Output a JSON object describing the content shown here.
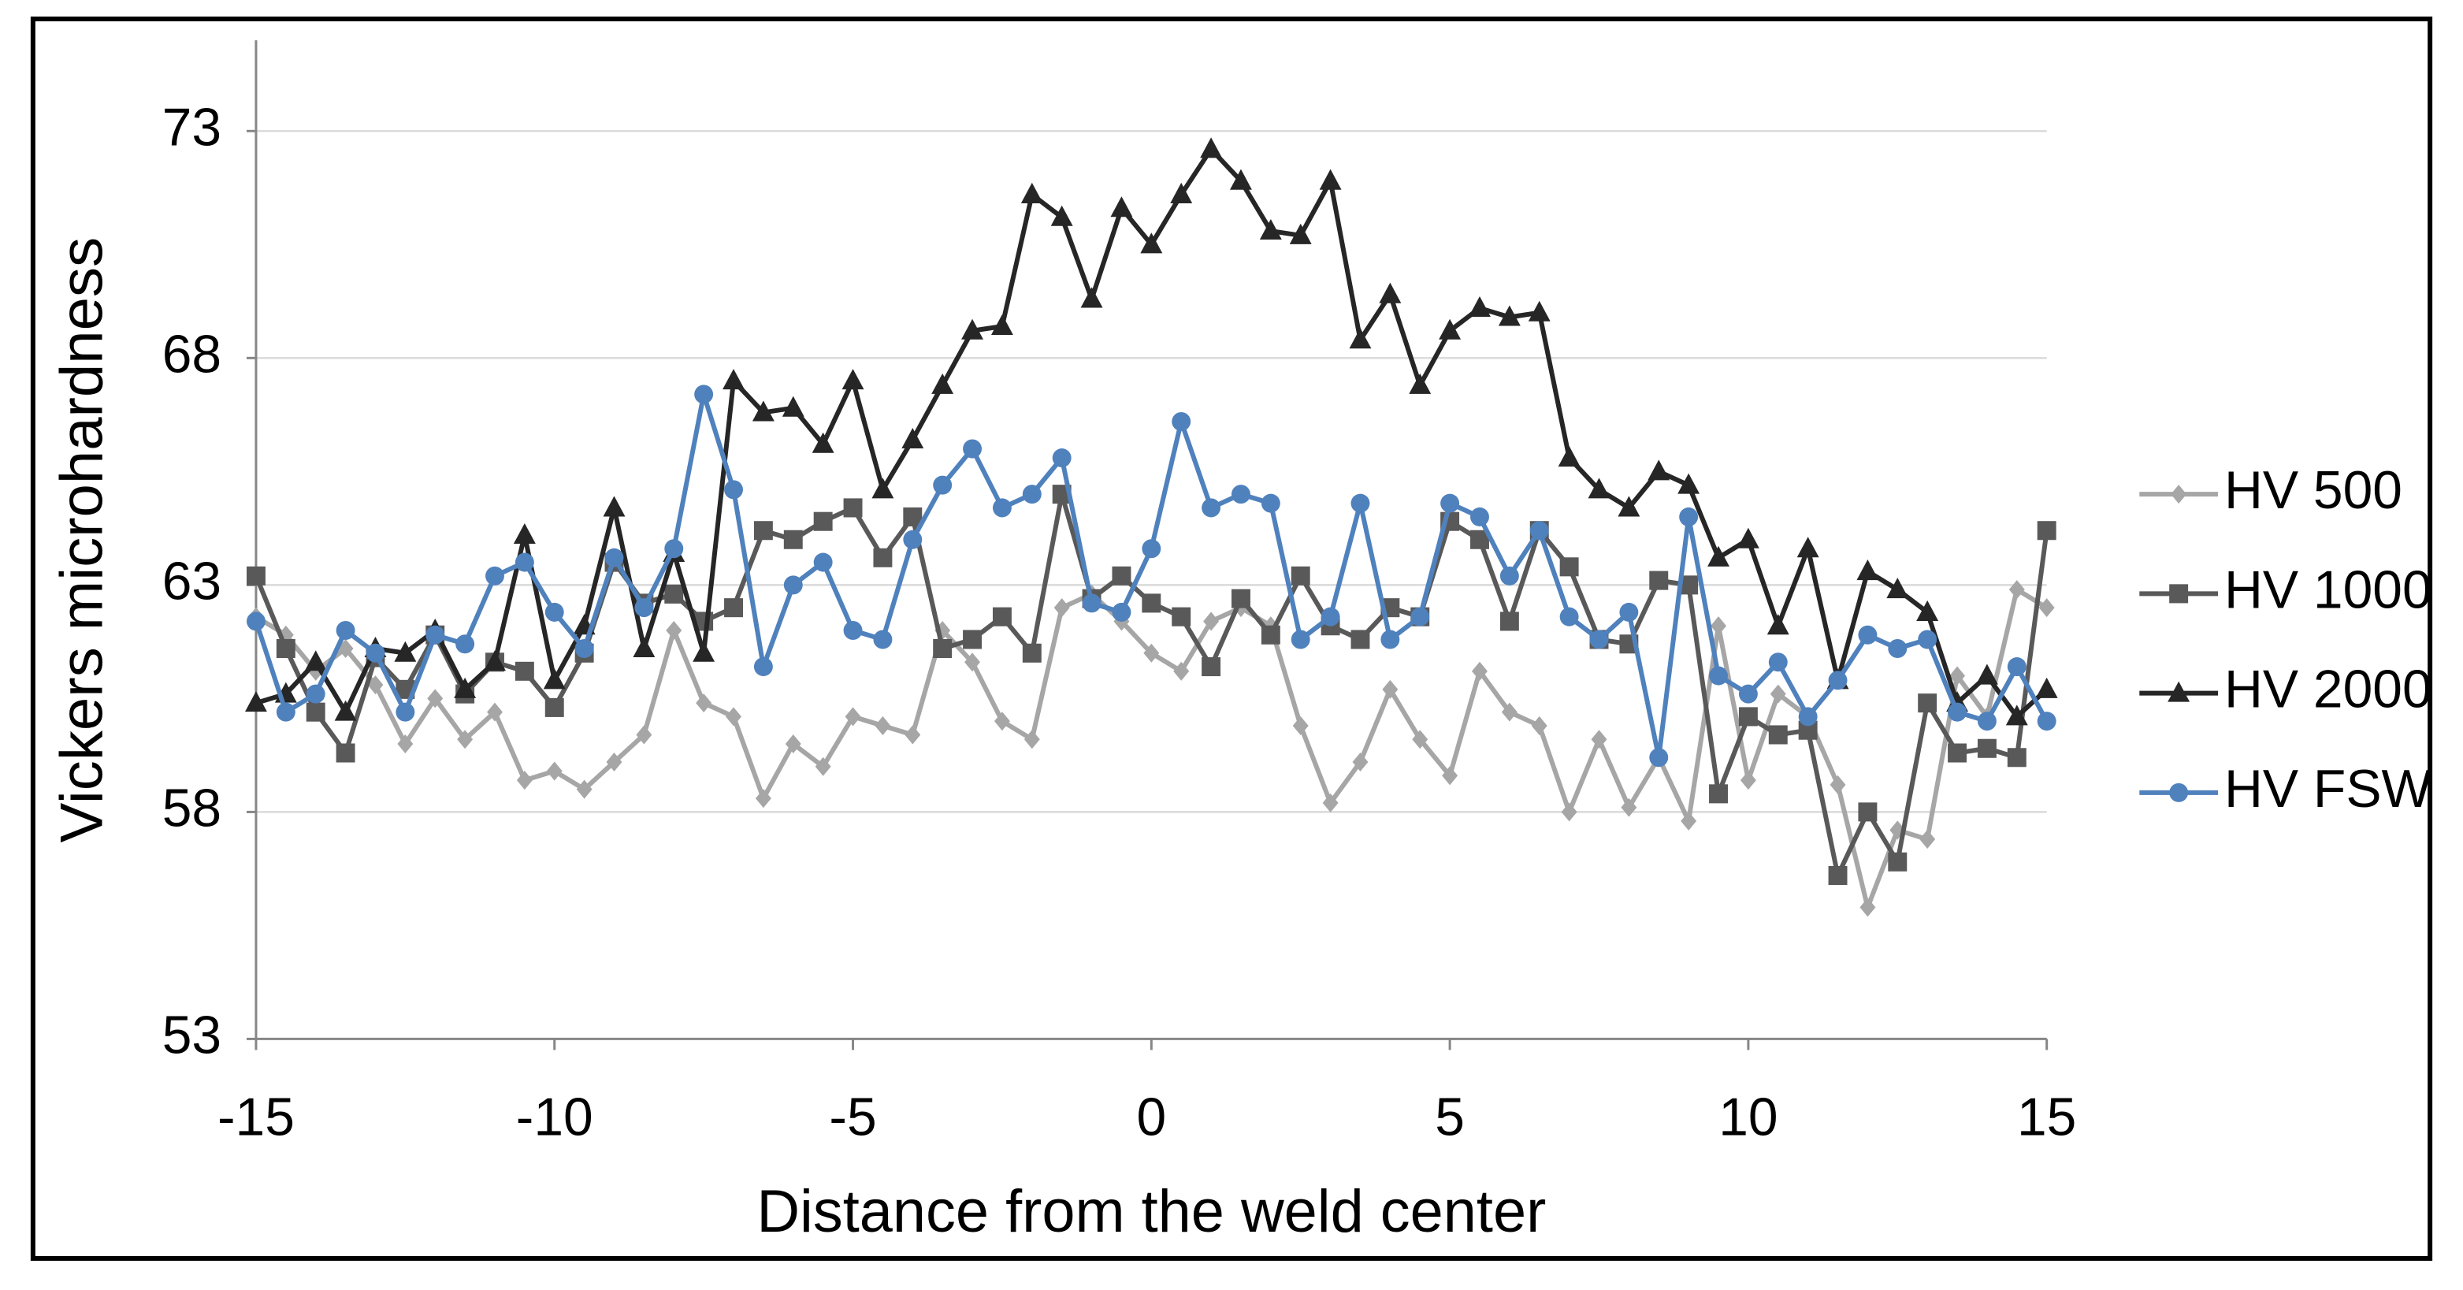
{
  "chart_data": {
    "type": "line",
    "xlabel": "Distance from the weld center",
    "ylabel": "Vickers microhardness",
    "x": [
      -15,
      -14.5,
      -14,
      -13.5,
      -13,
      -12.5,
      -12,
      -11.5,
      -11,
      -10.5,
      -10,
      -9.5,
      -9,
      -8.5,
      -8,
      -7.5,
      -7,
      -6.5,
      -6,
      -5.5,
      -5,
      -4.5,
      -4,
      -3.5,
      -3,
      -2.5,
      -2,
      -1.5,
      -1,
      -0.5,
      0,
      0.5,
      1,
      1.5,
      2,
      2.5,
      3,
      3.5,
      4,
      4.5,
      5,
      5.5,
      6,
      6.5,
      7,
      7.5,
      8,
      8.5,
      9,
      9.5,
      10,
      10.5,
      11,
      11.5,
      12,
      12.5,
      13,
      13.5,
      14,
      14.5,
      15
    ],
    "xlim": [
      -15,
      15
    ],
    "xticks": [
      -15,
      -10,
      -5,
      0,
      5,
      10,
      15
    ],
    "ylim": [
      53,
      75
    ],
    "yticks": [
      53,
      58,
      63,
      68,
      73
    ],
    "grid": true,
    "legend": "right",
    "series": [
      {
        "name": "HV 500",
        "color": "#a6a6a6",
        "marker": "diamond",
        "values": [
          62.3,
          61.9,
          61.1,
          61.6,
          60.8,
          59.5,
          60.5,
          59.6,
          60.2,
          58.7,
          58.9,
          58.5,
          59.1,
          59.7,
          62.0,
          60.4,
          60.1,
          58.3,
          59.5,
          59.0,
          60.1,
          59.9,
          59.7,
          62.0,
          61.3,
          60.0,
          59.6,
          62.5,
          62.8,
          62.2,
          61.5,
          61.1,
          62.2,
          62.5,
          62.1,
          59.9,
          58.2,
          59.1,
          60.7,
          59.6,
          58.8,
          61.1,
          60.2,
          59.9,
          58.0,
          59.6,
          58.1,
          59.2,
          57.8,
          62.1,
          58.7,
          60.6,
          60.1,
          58.6,
          55.9,
          57.6,
          57.4,
          61.0,
          60.1,
          62.9,
          62.5
        ]
      },
      {
        "name": "HV 1000",
        "color": "#595959",
        "marker": "square",
        "values": [
          63.2,
          61.6,
          60.2,
          59.3,
          61.4,
          60.7,
          61.9,
          60.6,
          61.3,
          61.1,
          60.3,
          61.5,
          63.5,
          62.6,
          62.8,
          62.2,
          62.5,
          64.2,
          64.0,
          64.4,
          64.7,
          63.6,
          64.5,
          61.6,
          61.8,
          62.3,
          61.5,
          65.0,
          62.7,
          63.2,
          62.6,
          62.3,
          61.2,
          62.7,
          61.9,
          63.2,
          62.1,
          61.8,
          62.5,
          62.3,
          64.4,
          64.0,
          62.2,
          64.2,
          63.4,
          61.8,
          61.7,
          63.1,
          63.0,
          58.4,
          60.1,
          59.7,
          59.8,
          56.6,
          58.0,
          56.9,
          60.4,
          59.3,
          59.4,
          59.2,
          64.2
        ]
      },
      {
        "name": "HV 2000",
        "color": "#262626",
        "marker": "triangle",
        "values": [
          60.4,
          60.6,
          61.3,
          60.2,
          61.6,
          61.5,
          62.0,
          60.7,
          61.3,
          64.1,
          60.9,
          62.1,
          64.7,
          61.6,
          63.7,
          61.5,
          67.5,
          66.8,
          66.9,
          66.1,
          67.5,
          65.1,
          66.2,
          67.4,
          68.6,
          68.7,
          71.6,
          71.1,
          69.3,
          71.3,
          70.5,
          71.6,
          72.6,
          71.9,
          70.8,
          70.7,
          71.9,
          68.4,
          69.4,
          67.4,
          68.6,
          69.1,
          68.9,
          69.0,
          65.8,
          65.1,
          64.7,
          65.5,
          65.2,
          63.6,
          64.0,
          62.1,
          63.8,
          60.9,
          63.3,
          62.9,
          62.4,
          60.4,
          61.0,
          60.1,
          60.7
        ]
      },
      {
        "name": "HV FSW",
        "color": "#4f81bd",
        "marker": "circle",
        "values": [
          62.2,
          60.2,
          60.6,
          62.0,
          61.5,
          60.2,
          61.9,
          61.7,
          63.2,
          63.5,
          62.4,
          61.6,
          63.6,
          62.5,
          63.8,
          67.2,
          65.1,
          61.2,
          63.0,
          63.5,
          62.0,
          61.8,
          64.0,
          65.2,
          66.0,
          64.7,
          65.0,
          65.8,
          62.6,
          62.4,
          63.8,
          66.6,
          64.7,
          65.0,
          64.8,
          61.8,
          62.3,
          64.8,
          61.8,
          62.3,
          64.8,
          64.5,
          63.2,
          64.2,
          62.3,
          61.8,
          62.4,
          59.2,
          64.5,
          61.0,
          60.6,
          61.3,
          60.1,
          60.9,
          61.9,
          61.6,
          61.8,
          60.2,
          60.0,
          61.2,
          60.0
        ]
      }
    ]
  }
}
